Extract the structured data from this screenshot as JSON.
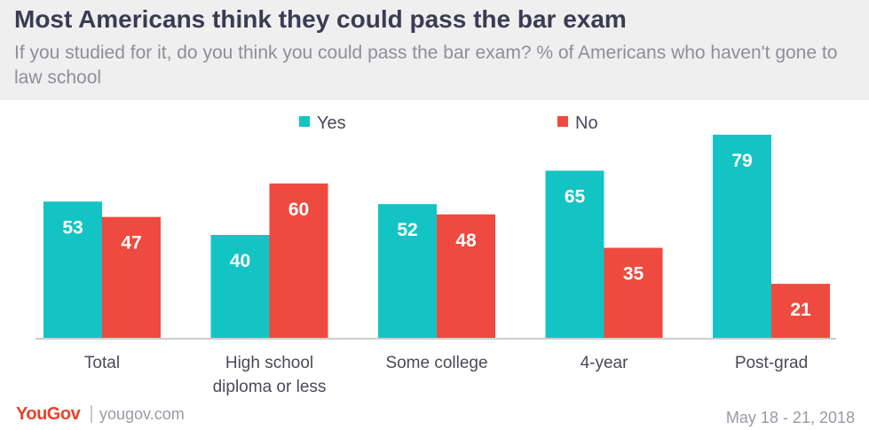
{
  "header": {
    "title": "Most Americans think they could pass the bar exam",
    "subtitle": "If you studied for it, do you think you could pass the bar exam? % of Americans who haven't gone to law school"
  },
  "chart_data": {
    "type": "bar",
    "categories": [
      [
        "Total"
      ],
      [
        "High school",
        "diploma or less"
      ],
      [
        "Some college"
      ],
      [
        "4-year"
      ],
      [
        "Post-grad"
      ]
    ],
    "series": [
      {
        "name": "Yes",
        "values": [
          53,
          40,
          52,
          65,
          79
        ],
        "color": "#14c4c4"
      },
      {
        "name": "No",
        "values": [
          47,
          60,
          48,
          35,
          21
        ],
        "color": "#ef4a3f"
      }
    ],
    "ylim": [
      0,
      80
    ],
    "grid": false,
    "legend": "top-center",
    "data_labels": true
  },
  "footer": {
    "brand": "YouGov",
    "url": "yougov.com",
    "date": "May 18 - 21, 2018"
  }
}
